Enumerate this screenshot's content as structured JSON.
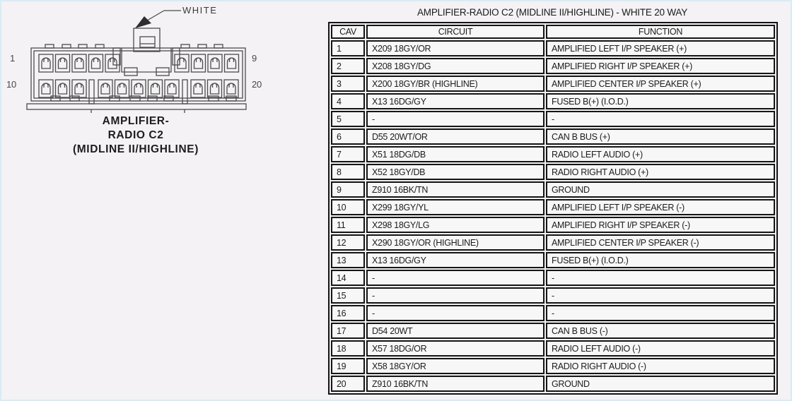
{
  "connector": {
    "white_label": "WHITE",
    "caption_lines": [
      "AMPLIFIER-",
      "RADIO C2",
      "(MIDLINE II/HIGHLINE)"
    ],
    "pin_labels": {
      "top_left": "1",
      "top_right": "9",
      "bottom_left": "10",
      "bottom_right": "20"
    },
    "top_row_groups": [
      5,
      4
    ],
    "bottom_row_groups": [
      3,
      5,
      3
    ],
    "connector_color_hex": "#f6f5f6",
    "line_color_hex": "#4c4c4c"
  },
  "table": {
    "title": "AMPLIFIER-RADIO C2 (MIDLINE II/HIGHLINE) - WHITE 20 WAY",
    "columns": [
      "CAV",
      "CIRCUIT",
      "FUNCTION"
    ],
    "rows": [
      [
        "1",
        "X209 18GY/OR",
        "AMPLIFIED LEFT I/P SPEAKER (+)"
      ],
      [
        "2",
        "X208 18GY/DG",
        "AMPLIFIED RIGHT I/P SPEAKER (+)"
      ],
      [
        "3",
        "X200 18GY/BR (HIGHLINE)",
        "AMPLIFIED CENTER I/P SPEAKER (+)"
      ],
      [
        "4",
        "X13 16DG/GY",
        "FUSED B(+) (I.O.D.)"
      ],
      [
        "5",
        "-",
        "-"
      ],
      [
        "6",
        "D55 20WT/OR",
        "CAN B BUS (+)"
      ],
      [
        "7",
        "X51 18DG/DB",
        "RADIO LEFT AUDIO (+)"
      ],
      [
        "8",
        "X52 18GY/DB",
        "RADIO RIGHT AUDIO (+)"
      ],
      [
        "9",
        "Z910 16BK/TN",
        "GROUND"
      ],
      [
        "10",
        "X299 18GY/YL",
        "AMPLIFIED LEFT I/P SPEAKER (-)"
      ],
      [
        "11",
        "X298 18GY/LG",
        "AMPLIFIED RIGHT I/P SPEAKER (-)"
      ],
      [
        "12",
        "X290 18GY/OR (HIGHLINE)",
        "AMPLIFIED CENTER I/P SPEAKER (-)"
      ],
      [
        "13",
        "X13 16DG/GY",
        "FUSED B(+) (I.O.D.)"
      ],
      [
        "14",
        "-",
        "-"
      ],
      [
        "15",
        "-",
        "-"
      ],
      [
        "16",
        "-",
        "-"
      ],
      [
        "17",
        "D54 20WT",
        "CAN B BUS (-)"
      ],
      [
        "18",
        "X57 18DG/OR",
        "RADIO LEFT AUDIO (-)"
      ],
      [
        "19",
        "X58 18GY/OR",
        "RADIO RIGHT AUDIO (-)"
      ],
      [
        "20",
        "Z910 16BK/TN",
        "GROUND"
      ]
    ]
  }
}
